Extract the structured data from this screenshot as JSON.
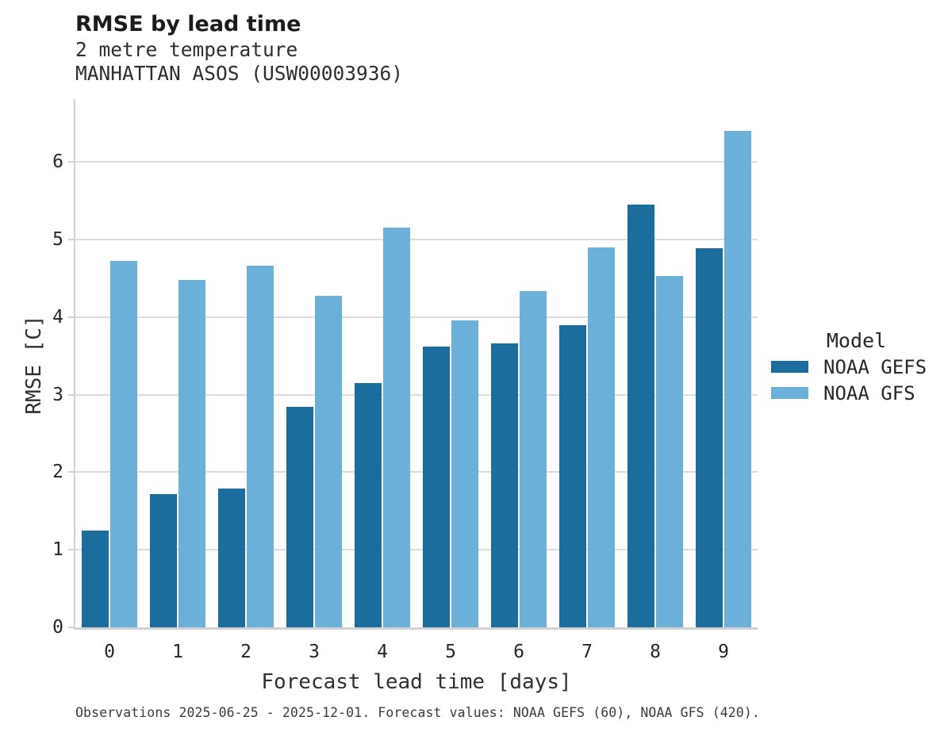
{
  "header": {
    "title": "RMSE by lead time",
    "subtitle_line1": "2 metre temperature",
    "subtitle_line2": "MANHATTAN ASOS (USW00003936)"
  },
  "axes": {
    "xlabel": "Forecast lead time [days]",
    "ylabel": "RMSE [C]"
  },
  "legend": {
    "title": "Model",
    "items": [
      {
        "label": "NOAA GEFS",
        "color": "#1b6d9e"
      },
      {
        "label": "NOAA GFS",
        "color": "#6bb0d9"
      }
    ]
  },
  "caption": "Observations 2025-06-25 - 2025-12-01. Forecast values: NOAA GEFS (60), NOAA GFS (420).",
  "chart_data": {
    "type": "bar",
    "title": "RMSE by lead time",
    "subtitle": [
      "2 metre temperature",
      "MANHATTAN ASOS (USW00003936)"
    ],
    "categories": [
      "0",
      "1",
      "2",
      "3",
      "4",
      "5",
      "6",
      "7",
      "8",
      "9"
    ],
    "series": [
      {
        "name": "NOAA GEFS",
        "color": "#1b6d9e",
        "values": [
          1.25,
          1.72,
          1.79,
          2.84,
          3.15,
          3.62,
          3.66,
          3.9,
          5.45,
          4.89
        ]
      },
      {
        "name": "NOAA GFS",
        "color": "#6bb0d9",
        "values": [
          4.72,
          4.48,
          4.66,
          4.27,
          5.15,
          3.96,
          4.34,
          4.9,
          4.53,
          6.4
        ]
      }
    ],
    "xlabel": "Forecast lead time [days]",
    "ylabel": "RMSE [C]",
    "ylim": [
      0,
      6.8
    ],
    "yticks": [
      0,
      1,
      2,
      3,
      4,
      5,
      6
    ],
    "grid": true,
    "legend_title": "Model",
    "legend_position": "right"
  }
}
